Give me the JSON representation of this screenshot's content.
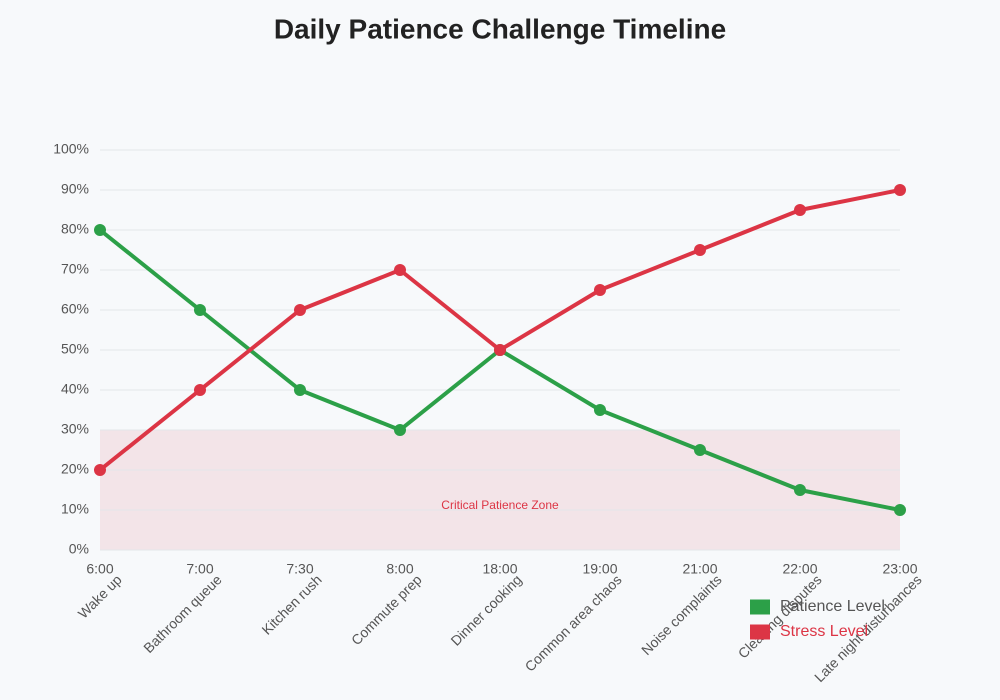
{
  "chart_data": {
    "type": "line",
    "title": "Daily Patience Challenge Timeline",
    "categories": [
      "6:00",
      "7:00",
      "7:30",
      "8:00",
      "18:00",
      "19:00",
      "21:00",
      "22:00",
      "23:00"
    ],
    "activities": [
      "Wake up",
      "Bathroom queue",
      "Kitchen rush",
      "Commute prep",
      "Dinner cooking",
      "Common area chaos",
      "Noise complaints",
      "Cleaning disputes",
      "Late night disturbances"
    ],
    "series": [
      {
        "name": "Patience Level",
        "color": "#2ca048",
        "values": [
          80,
          60,
          40,
          30,
          50,
          35,
          25,
          15,
          10
        ]
      },
      {
        "name": "Stress Level",
        "color": "#dc3545",
        "values": [
          20,
          40,
          60,
          70,
          50,
          65,
          75,
          85,
          90
        ]
      }
    ],
    "ylim": [
      0,
      100
    ],
    "yticks": [
      {
        "value": 0,
        "label": "0%"
      },
      {
        "value": 10,
        "label": "10%"
      },
      {
        "value": 20,
        "label": "20%"
      },
      {
        "value": 30,
        "label": "30%"
      },
      {
        "value": 40,
        "label": "40%"
      },
      {
        "value": 50,
        "label": "50%"
      },
      {
        "value": 60,
        "label": "60%"
      },
      {
        "value": 70,
        "label": "70%"
      },
      {
        "value": 80,
        "label": "80%"
      },
      {
        "value": 90,
        "label": "90%"
      },
      {
        "value": 100,
        "label": "100%"
      }
    ],
    "grid": true,
    "zone": {
      "from": 0,
      "to": 30,
      "label": "Critical Patience Zone",
      "color": "#dc3545"
    },
    "legend": "bottom-right"
  }
}
